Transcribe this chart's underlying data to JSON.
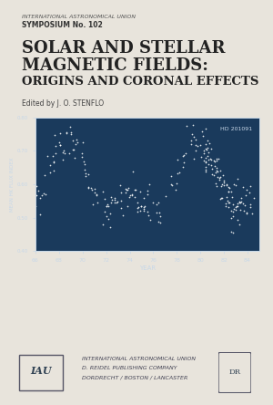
{
  "bg_color": "#e8e4dc",
  "title_line1": "SOLAR AND STELLAR",
  "title_line2": "MAGNETIC FIELDS:",
  "title_line3": "ORIGINS AND CORONAL EFFECTS",
  "header_line1": "INTERNATIONAL ASTRONOMICAL UNION",
  "header_line2": "SYMPOSIUM No. 102",
  "editor_line": "Edited by J. O. STENFLO",
  "footer_line1": "INTERNATIONAL ASTRONOMICAL UNION",
  "footer_line2": "D. REIDEL PUBLISHING COMPANY",
  "footer_line3": "DORDRECHT / BOSTON / LANCASTER",
  "plot_bg": "#1a3a5c",
  "plot_text_color": "#c8d8e8",
  "xlabel": "YEAR",
  "ylabel": "MEAN HK FLUX INDEX",
  "annotation": "HD 201091",
  "x_ticks": [
    66,
    68,
    70,
    72,
    74,
    76,
    78,
    80,
    82,
    84
  ],
  "ylim": [
    0.4,
    0.8
  ],
  "xlim": [
    66,
    85
  ]
}
